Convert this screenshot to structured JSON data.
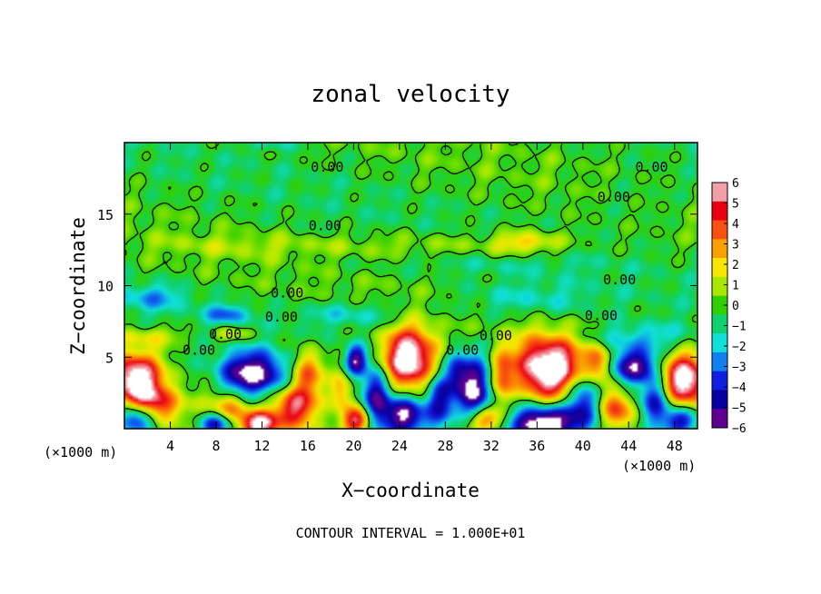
{
  "chart_data": {
    "type": "heatmap",
    "title": "zonal velocity",
    "xlabel": "X−coordinate",
    "ylabel": "Z−coordinate",
    "x_unit": "(×1000 m)",
    "z_unit": "(×1000 m)",
    "xlim": [
      0,
      50
    ],
    "ylim": [
      0,
      20
    ],
    "x_ticks": [
      4,
      8,
      12,
      16,
      20,
      24,
      28,
      32,
      36,
      40,
      44,
      48
    ],
    "y_ticks": [
      5,
      10,
      15
    ],
    "colorbar": {
      "ticks": [
        6,
        5,
        4,
        3,
        2,
        1,
        0,
        -1,
        -2,
        -3,
        -4,
        -5,
        -6
      ],
      "tick_labels": [
        "6",
        "5",
        "4",
        "3",
        "2",
        "1",
        "0",
        "−1",
        "−2",
        "−3",
        "−4",
        "−5",
        "−6"
      ],
      "range": [
        -6,
        6
      ],
      "colors": [
        "#f2a0a8",
        "#e80010",
        "#f85010",
        "#f8a000",
        "#f8e800",
        "#a8e800",
        "#30d000",
        "#10d070",
        "#10e0d8",
        "#1080f0",
        "#1020e0",
        "#0800a0",
        "#600090"
      ]
    },
    "contour_label": "0.00",
    "contour_labels": [
      {
        "text": "0.00",
        "x": 17.7,
        "z": 18.3
      },
      {
        "text": "0.00",
        "x": 46.0,
        "z": 18.3
      },
      {
        "text": "0.00",
        "x": 42.7,
        "z": 16.2
      },
      {
        "text": "0.00",
        "x": 17.5,
        "z": 14.2
      },
      {
        "text": "0.00",
        "x": 43.2,
        "z": 10.4
      },
      {
        "text": "0.00",
        "x": 14.2,
        "z": 9.5
      },
      {
        "text": "0.00",
        "x": 13.7,
        "z": 7.8
      },
      {
        "text": "0.00",
        "x": 41.6,
        "z": 7.9
      },
      {
        "text": "0.00",
        "x": 8.8,
        "z": 6.6
      },
      {
        "text": "0.00",
        "x": 32.4,
        "z": 6.5
      },
      {
        "text": "0.00",
        "x": 6.5,
        "z": 5.5
      },
      {
        "text": "0.00",
        "x": 29.5,
        "z": 5.5
      }
    ],
    "eddies": [
      {
        "x": 1.0,
        "z": 3.5,
        "rx": 2.2,
        "rz": 1.9,
        "v": 7.5
      },
      {
        "x": 11.2,
        "z": 3.8,
        "rx": 2.8,
        "rz": 1.5,
        "v": -7.0
      },
      {
        "x": 14.8,
        "z": 1.6,
        "rx": 2.0,
        "rz": 1.5,
        "v": 5.5
      },
      {
        "x": 9.0,
        "z": 1.5,
        "rx": 1.6,
        "rz": 1.2,
        "v": 3.5
      },
      {
        "x": 3.0,
        "z": 1.7,
        "rx": 2.0,
        "rz": 1.3,
        "v": 4.0
      },
      {
        "x": 1.0,
        "z": 0.7,
        "rx": 1.5,
        "rz": 1.0,
        "v": -5.5
      },
      {
        "x": 8.0,
        "z": 0.3,
        "rx": 1.5,
        "rz": 0.8,
        "v": -5.0
      },
      {
        "x": 11.8,
        "z": 0.3,
        "rx": 1.6,
        "rz": 0.9,
        "v": 7.0
      },
      {
        "x": 16.0,
        "z": 4.0,
        "rx": 1.5,
        "rz": 1.6,
        "v": 4.5
      },
      {
        "x": 20.2,
        "z": 4.8,
        "rx": 0.9,
        "rz": 1.0,
        "v": -5.5
      },
      {
        "x": 19.0,
        "z": 2.6,
        "rx": 1.0,
        "rz": 1.5,
        "v": 3.5
      },
      {
        "x": 20.3,
        "z": 0.6,
        "rx": 1.3,
        "rz": 0.9,
        "v": 5.5
      },
      {
        "x": 22.0,
        "z": 2.3,
        "rx": 1.2,
        "rz": 2.2,
        "v": -5.5
      },
      {
        "x": 24.8,
        "z": 4.8,
        "rx": 2.4,
        "rz": 2.2,
        "v": 8.5
      },
      {
        "x": 24.5,
        "z": 0.9,
        "rx": 1.8,
        "rz": 1.4,
        "v": -6.5
      },
      {
        "x": 27.5,
        "z": 2.2,
        "rx": 1.2,
        "rz": 2.0,
        "v": -4.5
      },
      {
        "x": 29.0,
        "z": 4.0,
        "rx": 1.0,
        "rz": 1.6,
        "v": -3.5
      },
      {
        "x": 30.6,
        "z": 2.6,
        "rx": 1.4,
        "rz": 2.4,
        "v": -6.0
      },
      {
        "x": 31.5,
        "z": 0.6,
        "rx": 1.7,
        "rz": 1.0,
        "v": 6.0
      },
      {
        "x": 33.0,
        "z": 3.4,
        "rx": 1.0,
        "rz": 2.0,
        "v": 3.5
      },
      {
        "x": 37.0,
        "z": 4.2,
        "rx": 3.0,
        "rz": 2.2,
        "v": 8.5
      },
      {
        "x": 36.5,
        "z": 0.4,
        "rx": 3.0,
        "rz": 1.2,
        "v": -7.5
      },
      {
        "x": 40.0,
        "z": 2.0,
        "rx": 1.4,
        "rz": 1.8,
        "v": -4.5
      },
      {
        "x": 41.5,
        "z": 4.6,
        "rx": 1.2,
        "rz": 1.3,
        "v": 4.0
      },
      {
        "x": 44.3,
        "z": 4.4,
        "rx": 2.2,
        "rz": 1.2,
        "v": -6.5
      },
      {
        "x": 43.0,
        "z": 1.2,
        "rx": 1.5,
        "rz": 1.4,
        "v": 5.0
      },
      {
        "x": 46.3,
        "z": 2.0,
        "rx": 1.3,
        "rz": 1.6,
        "v": -5.0
      },
      {
        "x": 48.9,
        "z": 3.4,
        "rx": 2.0,
        "rz": 1.8,
        "v": 7.5
      },
      {
        "x": 48.6,
        "z": 0.6,
        "rx": 1.6,
        "rz": 0.9,
        "v": -4.5
      },
      {
        "x": 9.0,
        "z": 8.0,
        "rx": 1.8,
        "rz": 0.7,
        "v": -3.0
      },
      {
        "x": 2.5,
        "z": 9.2,
        "rx": 3.0,
        "rz": 0.9,
        "v": -2.2
      },
      {
        "x": 2.5,
        "z": 6.5,
        "rx": 3.0,
        "rz": 0.7,
        "v": 2.0
      },
      {
        "x": 9.5,
        "z": 6.6,
        "rx": 2.0,
        "rz": 0.6,
        "v": 2.0
      },
      {
        "x": 20.0,
        "z": 8.0,
        "rx": 5.0,
        "rz": 0.9,
        "v": -1.8
      },
      {
        "x": 35.0,
        "z": 9.0,
        "rx": 6.0,
        "rz": 1.2,
        "v": -1.6
      },
      {
        "x": 45.0,
        "z": 6.4,
        "rx": 5.0,
        "rz": 1.0,
        "v": -2.2
      },
      {
        "x": 35.0,
        "z": 13.0,
        "rx": 3.0,
        "rz": 0.8,
        "v": 2.5
      },
      {
        "x": 27.0,
        "z": 12.8,
        "rx": 10.0,
        "rz": 1.0,
        "v": 1.2
      },
      {
        "x": 10.0,
        "z": 12.8,
        "rx": 8.0,
        "rz": 0.8,
        "v": 0.8
      },
      {
        "x": 30.0,
        "z": 11.5,
        "rx": 12.0,
        "rz": 0.8,
        "v": -0.7
      },
      {
        "x": 45.0,
        "z": 16.0,
        "rx": 5.0,
        "rz": 2.0,
        "v": -0.6
      },
      {
        "x": 13.0,
        "z": 19.8,
        "rx": 2.0,
        "rz": 0.4,
        "v": -1.2
      }
    ]
  },
  "footer": {
    "x_unit_label": "(×1000 m)",
    "x_unit_label_right": "(×1000 m)",
    "contour_interval": "CONTOUR INTERVAL = 1.000E+01"
  }
}
